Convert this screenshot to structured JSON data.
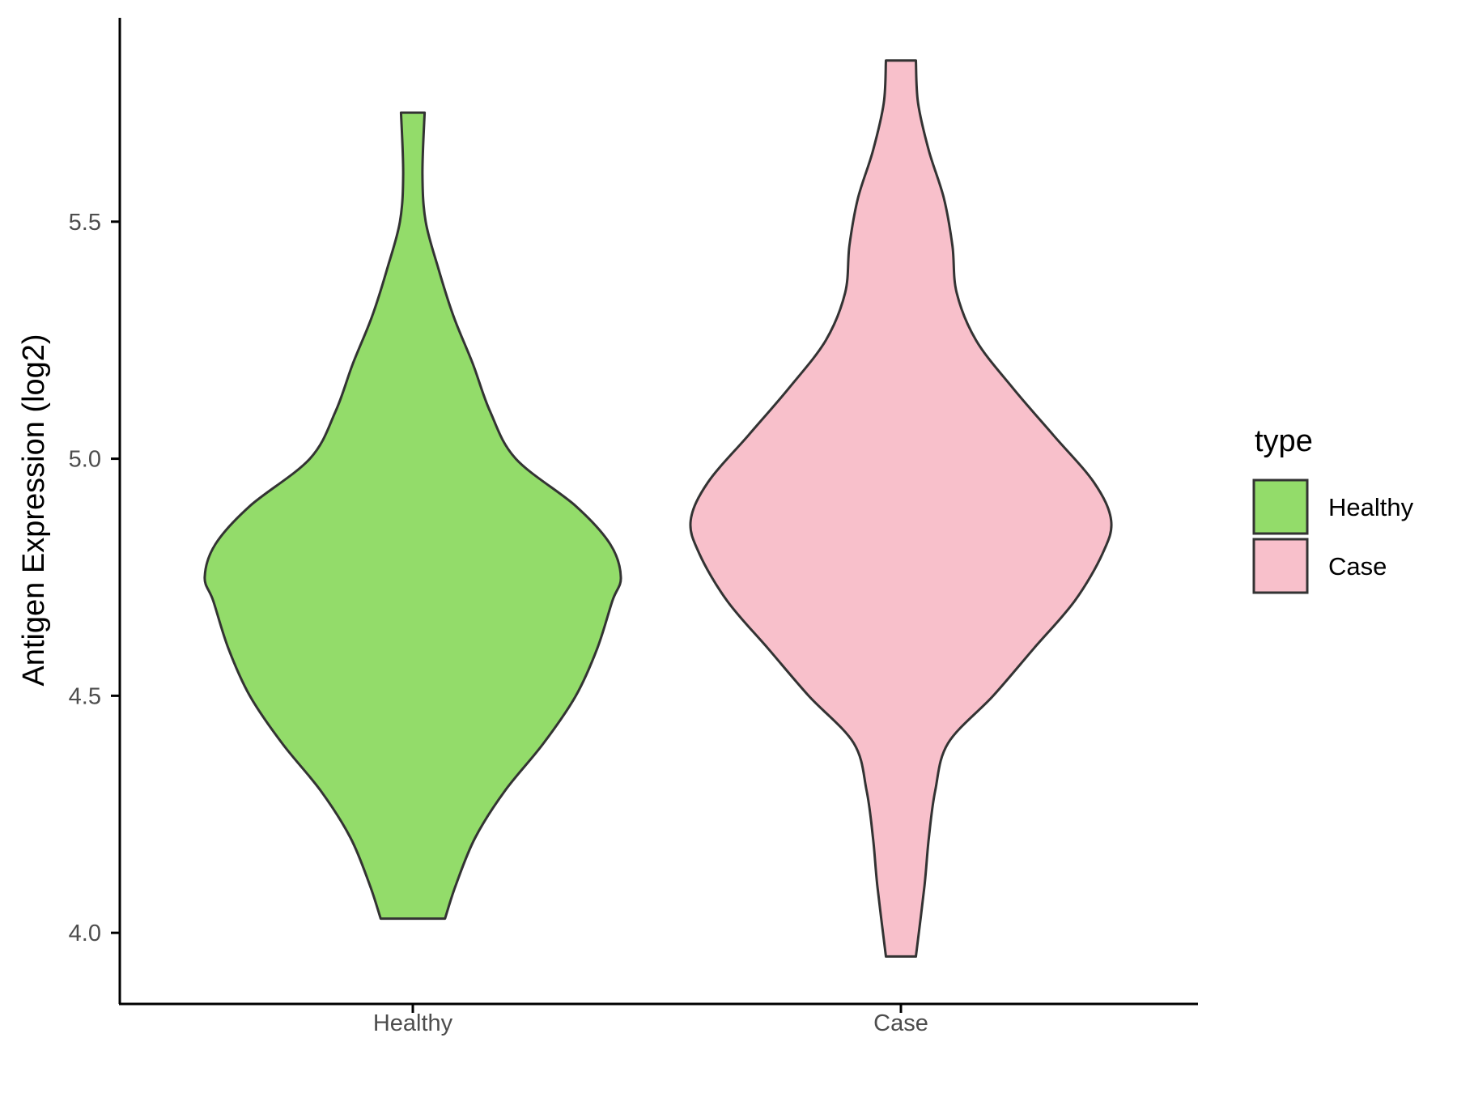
{
  "chart_data": {
    "type": "violin",
    "title": "",
    "xlabel": "",
    "ylabel": "Antigen Expression (log2)",
    "ylim": [
      3.85,
      5.93
    ],
    "yticks": [
      4.0,
      4.5,
      5.0,
      5.5
    ],
    "ytick_labels": [
      "4.0",
      "4.5",
      "5.0",
      "5.5"
    ],
    "grid": false,
    "categories": [
      "Healthy",
      "Case"
    ],
    "legend": {
      "title": "type",
      "position": "right",
      "entries": [
        "Healthy",
        "Case"
      ]
    },
    "series": [
      {
        "name": "Healthy",
        "color": "#93DC6A",
        "ymin": 4.03,
        "ymax": 5.73,
        "density": [
          [
            4.03,
            0.15
          ],
          [
            4.1,
            0.2
          ],
          [
            4.2,
            0.29
          ],
          [
            4.3,
            0.43
          ],
          [
            4.4,
            0.61
          ],
          [
            4.5,
            0.76
          ],
          [
            4.6,
            0.86
          ],
          [
            4.7,
            0.93
          ],
          [
            4.75,
            0.97
          ],
          [
            4.82,
            0.92
          ],
          [
            4.9,
            0.76
          ],
          [
            5.0,
            0.48
          ],
          [
            5.1,
            0.36
          ],
          [
            5.2,
            0.28
          ],
          [
            5.3,
            0.19
          ],
          [
            5.4,
            0.12
          ],
          [
            5.5,
            0.06
          ],
          [
            5.6,
            0.045
          ],
          [
            5.73,
            0.055
          ]
        ]
      },
      {
        "name": "Case",
        "color": "#F8C0CB",
        "ymin": 3.95,
        "ymax": 5.84,
        "density": [
          [
            3.95,
            0.07
          ],
          [
            4.1,
            0.11
          ],
          [
            4.2,
            0.13
          ],
          [
            4.3,
            0.16
          ],
          [
            4.4,
            0.22
          ],
          [
            4.5,
            0.43
          ],
          [
            4.6,
            0.62
          ],
          [
            4.7,
            0.81
          ],
          [
            4.8,
            0.94
          ],
          [
            4.87,
            0.98
          ],
          [
            4.95,
            0.9
          ],
          [
            5.05,
            0.71
          ],
          [
            5.15,
            0.52
          ],
          [
            5.25,
            0.35
          ],
          [
            5.35,
            0.26
          ],
          [
            5.45,
            0.24
          ],
          [
            5.55,
            0.2
          ],
          [
            5.65,
            0.13
          ],
          [
            5.75,
            0.08
          ],
          [
            5.84,
            0.07
          ]
        ]
      }
    ]
  }
}
